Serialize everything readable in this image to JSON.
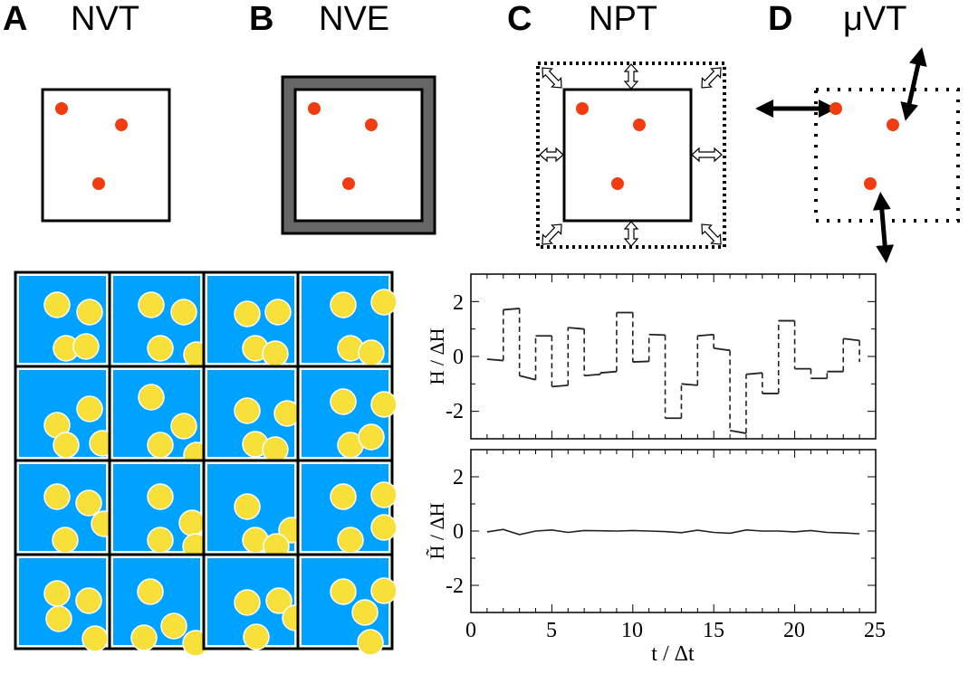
{
  "panels": [
    {
      "letter": "A",
      "title": "NVT",
      "description": "canonical ensemble box with three particles"
    },
    {
      "letter": "B",
      "title": "NVE",
      "description": "microcanonical ensemble box with thick insulating wall"
    },
    {
      "letter": "C",
      "title": "NPT",
      "description": "isothermal-isobaric ensemble box with dotted outer boundary and volume-change arrows"
    },
    {
      "letter": "D",
      "title": "μVT",
      "description": "grand canonical ensemble with dotted boundary and particle exchange arrows"
    }
  ],
  "colors": {
    "particle": "#f03c10",
    "nve_wall": "#666666",
    "tile_background": "#00a2ff",
    "disc": "#f7e03a",
    "disc_outline": "#ffffff",
    "grid_line": "#000000"
  },
  "replica_grid": {
    "rows": 4,
    "cols": 4,
    "discs_per_tile": 4
  },
  "chart_data": [
    {
      "type": "line",
      "style": "dashed step",
      "title": "",
      "xlabel": "",
      "ylabel": "H / ΔH",
      "xlim": [
        0,
        25
      ],
      "ylim": [
        -3,
        3
      ],
      "yticks": [
        -2,
        0,
        2
      ],
      "ytick_labels": [
        "-2",
        "0",
        "2"
      ],
      "xticks": [
        0,
        5,
        10,
        15,
        20,
        25
      ],
      "segments": [
        {
          "t0": 1,
          "t1": 2,
          "v0": -0.1,
          "v1": -0.15
        },
        {
          "t0": 2,
          "t1": 3,
          "v0": 1.7,
          "v1": 1.75
        },
        {
          "t0": 3,
          "t1": 4,
          "v0": -0.7,
          "v1": -0.85
        },
        {
          "t0": 4,
          "t1": 5,
          "v0": 0.75,
          "v1": 0.75
        },
        {
          "t0": 5,
          "t1": 6,
          "v0": -1.1,
          "v1": -1.05
        },
        {
          "t0": 6,
          "t1": 7,
          "v0": 1.05,
          "v1": 1.0
        },
        {
          "t0": 7,
          "t1": 8,
          "v0": -0.7,
          "v1": -0.65
        },
        {
          "t0": 8,
          "t1": 9,
          "v0": -0.6,
          "v1": -0.55
        },
        {
          "t0": 9,
          "t1": 10,
          "v0": 1.6,
          "v1": 1.6
        },
        {
          "t0": 10,
          "t1": 11,
          "v0": -0.2,
          "v1": -0.18
        },
        {
          "t0": 11,
          "t1": 12,
          "v0": 0.8,
          "v1": 0.78
        },
        {
          "t0": 12,
          "t1": 13,
          "v0": -2.25,
          "v1": -2.25
        },
        {
          "t0": 13,
          "t1": 14,
          "v0": -1.0,
          "v1": -1.05
        },
        {
          "t0": 14,
          "t1": 15,
          "v0": 0.75,
          "v1": 0.8
        },
        {
          "t0": 15,
          "t1": 16,
          "v0": 0.3,
          "v1": 0.22
        },
        {
          "t0": 16,
          "t1": 17,
          "v0": -2.7,
          "v1": -2.8
        },
        {
          "t0": 17,
          "t1": 18,
          "v0": -0.65,
          "v1": -0.6
        },
        {
          "t0": 18,
          "t1": 19,
          "v0": -1.35,
          "v1": -1.35
        },
        {
          "t0": 19,
          "t1": 20,
          "v0": 1.3,
          "v1": 1.3
        },
        {
          "t0": 20,
          "t1": 21,
          "v0": -0.45,
          "v1": -0.45
        },
        {
          "t0": 21,
          "t1": 22,
          "v0": -0.8,
          "v1": -0.8
        },
        {
          "t0": 22,
          "t1": 23,
          "v0": -0.55,
          "v1": -0.55
        },
        {
          "t0": 23,
          "t1": 24,
          "v0": 0.65,
          "v1": 0.58
        }
      ],
      "final_value": -0.2
    },
    {
      "type": "line",
      "title": "",
      "xlabel": "t / Δt",
      "ylabel": "H̃ / ΔH",
      "xlim": [
        0,
        25
      ],
      "ylim": [
        -3,
        3
      ],
      "yticks": [
        -2,
        0,
        2
      ],
      "ytick_labels": [
        "-2",
        "0",
        "2"
      ],
      "xticks": [
        0,
        5,
        10,
        15,
        20,
        25
      ],
      "xtick_labels": [
        "0",
        "5",
        "10",
        "15",
        "20",
        "25"
      ],
      "x": [
        1,
        2,
        3,
        4,
        5,
        6,
        7,
        8,
        9,
        10,
        11,
        12,
        13,
        14,
        15,
        16,
        17,
        18,
        19,
        20,
        21,
        22,
        23,
        24
      ],
      "y": [
        -0.03,
        0.06,
        -0.13,
        0.0,
        0.04,
        -0.05,
        0.02,
        0.01,
        0.0,
        0.02,
        0.0,
        -0.02,
        -0.06,
        0.03,
        -0.05,
        -0.08,
        0.04,
        0.0,
        0.0,
        -0.03,
        0.02,
        -0.05,
        -0.07,
        -0.1
      ]
    }
  ]
}
